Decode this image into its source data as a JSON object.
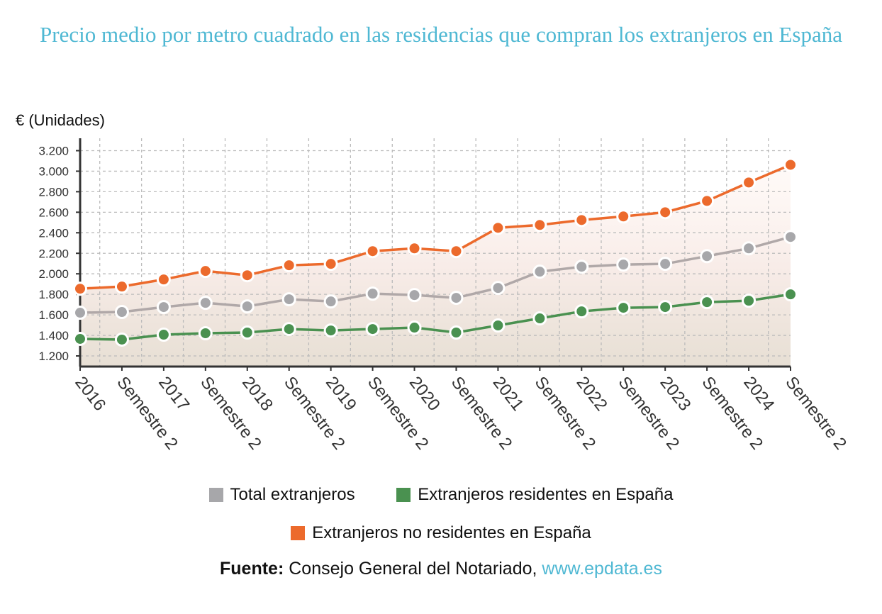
{
  "title": "Precio medio por metro cuadrado en las residencias que compran los extranjeros en España",
  "source": {
    "label": "Fuente:",
    "text": "Consejo General del Notariado,",
    "link": "www.epdata.es"
  },
  "chart_data": {
    "type": "line",
    "title": "Precio medio por metro cuadrado en las residencias que compran los extranjeros en España",
    "ylabel": "€ (Unidades)",
    "ylim": [
      1200,
      3200
    ],
    "yticks": [
      "1.200",
      "1.400",
      "1.600",
      "1.800",
      "2.000",
      "2.200",
      "2.400",
      "2.600",
      "2.800",
      "3.000",
      "3.200"
    ],
    "ytick_values": [
      1200,
      1400,
      1600,
      1800,
      2000,
      2200,
      2400,
      2600,
      2800,
      3000,
      3200
    ],
    "grid": true,
    "legend_placement": "bottom",
    "categories": [
      "2016",
      "Semestre 2",
      "2017",
      "Semestre 2",
      "2018",
      "Semestre 2",
      "2019",
      "Semestre 2",
      "2020",
      "Semestre 2",
      "2021",
      "Semestre 2",
      "2022",
      "Semestre 2",
      "2023",
      "Semestre 2",
      "2024",
      "Semestre 2"
    ],
    "series": [
      {
        "name": "Total extranjeros",
        "color": "#a7a7aa",
        "line_color": "#b0a8a8",
        "values": [
          1621,
          1628,
          1676,
          1717,
          1683,
          1752,
          1731,
          1807,
          1793,
          1766,
          1862,
          2021,
          2069,
          2090,
          2097,
          2172,
          2248,
          2359
        ]
      },
      {
        "name": "Extranjeros residentes en España",
        "color": "#4a9150",
        "values": [
          1366,
          1359,
          1407,
          1421,
          1428,
          1462,
          1448,
          1462,
          1476,
          1428,
          1497,
          1566,
          1634,
          1669,
          1676,
          1724,
          1738,
          1800
        ]
      },
      {
        "name": "Extranjeros no residentes en España",
        "color": "#ec6a2c",
        "values": [
          1855,
          1876,
          1945,
          2028,
          1986,
          2083,
          2097,
          2221,
          2248,
          2221,
          2448,
          2476,
          2524,
          2559,
          2600,
          2710,
          2890,
          3062
        ]
      }
    ]
  }
}
